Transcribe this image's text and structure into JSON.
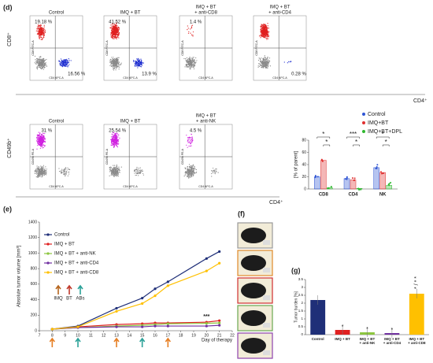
{
  "panels": {
    "d": "(d)",
    "e": "(e)",
    "f": "(f)",
    "g": "(g)"
  },
  "flow_top": {
    "y_axis": "CD8⁺",
    "x_axis": "CD4⁺",
    "inner_x": "CD4 APC-A",
    "inner_y": "CD8 FITC-A",
    "plots": [
      {
        "title": [
          "Control"
        ],
        "q1": "19.18 %",
        "q4": "16.56 %"
      },
      {
        "title": [
          "IMQ + BT"
        ],
        "q1": "41.52 %",
        "q4": "13.9 %"
      },
      {
        "title": [
          "IMQ + BT",
          "+ anti-CD8"
        ],
        "q1": "1.4 %"
      },
      {
        "title": [
          "IMQ + BT",
          "+ anti-CD4"
        ],
        "q4": "0.28 %"
      }
    ]
  },
  "flow_bottom": {
    "y_axis": "CD49b⁺",
    "x_axis": "CD4⁺",
    "inner_x": "CD4 APC-A",
    "inner_y": "CD49b PE-A",
    "plots": [
      {
        "title": [
          "Control"
        ],
        "q1": "31 %"
      },
      {
        "title": [
          "IMQ + BT"
        ],
        "q1": "25.54 %"
      },
      {
        "title": [
          "IMQ + BT",
          "+ anti-NK"
        ],
        "q1": "4.5 %"
      }
    ]
  },
  "chart_data": [
    {
      "type": "bar",
      "ylabel": "[% of parent]",
      "categories": [
        "CD8",
        "CD4",
        "NK"
      ],
      "series": [
        {
          "name": "Control",
          "color": "#2f55d4",
          "values": [
            20,
            17,
            35
          ]
        },
        {
          "name": "IMQ+BT",
          "color": "#e03030",
          "values": [
            47,
            15,
            27
          ]
        },
        {
          "name": "IMQ+BT+DPL",
          "color": "#2fb82f",
          "values": [
            2,
            1,
            6
          ]
        }
      ],
      "significance": [
        [
          "*",
          "*"
        ],
        [
          "***",
          "*"
        ],
        [
          "*",
          "*"
        ]
      ],
      "ylim": [
        0,
        80
      ],
      "yticks": [
        0,
        20,
        40,
        60,
        80
      ]
    },
    {
      "type": "line",
      "ylabel": "Absolute tumor volume [mm³]",
      "xlabel": "Day of therapy",
      "x": [
        8,
        10,
        13,
        15,
        16,
        17,
        20,
        21
      ],
      "series": [
        {
          "name": "Control",
          "color": "#1f2f78",
          "values": [
            20,
            60,
            290,
            420,
            540,
            630,
            930,
            1020
          ]
        },
        {
          "name": "IMQ + BT",
          "color": "#e02020",
          "values": [
            20,
            50,
            80,
            90,
            100,
            100,
            110,
            130
          ]
        },
        {
          "name": "IMQ + BT + anti-NK",
          "color": "#8cc63f",
          "values": [
            20,
            40,
            60,
            70,
            80,
            90,
            95,
            100
          ]
        },
        {
          "name": "IMQ + BT + anti-CD4",
          "color": "#7030a0",
          "values": [
            20,
            40,
            50,
            50,
            60,
            60,
            60,
            70
          ]
        },
        {
          "name": "IMQ + BT + anti-CD8",
          "color": "#ffc000",
          "values": [
            20,
            50,
            250,
            350,
            450,
            580,
            770,
            870
          ]
        }
      ],
      "treatments": [
        "IMQ",
        "BT",
        "ABs"
      ],
      "annotation": "***",
      "xlim": [
        7,
        22
      ],
      "xticks": [
        7,
        8,
        9,
        10,
        11,
        12,
        13,
        14,
        15,
        16,
        17,
        18,
        19,
        20,
        21,
        22
      ],
      "ylim": [
        0,
        1400
      ],
      "yticks": [
        0,
        200,
        400,
        600,
        800,
        1000,
        1200,
        1400
      ]
    },
    {
      "type": "bar",
      "ylabel": "Tumor burden [%]",
      "categories": [
        [
          "Control"
        ],
        [
          "IMQ + BT"
        ],
        [
          "IMQ + BT",
          "+ anti-NK"
        ],
        [
          "IMQ + BT",
          "+ anti-CD4"
        ],
        [
          "IMQ + BT",
          "+ anti-CD8"
        ]
      ],
      "values": [
        2.2,
        0.3,
        0.15,
        0.1,
        2.6
      ],
      "colors": [
        "#1f2f78",
        "#e02020",
        "#8cc63f",
        "#7030a0",
        "#ffc000"
      ],
      "significance": [
        null,
        "*",
        "*",
        "*",
        "* / * *"
      ],
      "ylim": [
        0,
        3.5
      ],
      "yticks": [
        0,
        0.5,
        1,
        1.5,
        2,
        2.5,
        3,
        3.5
      ]
    }
  ]
}
